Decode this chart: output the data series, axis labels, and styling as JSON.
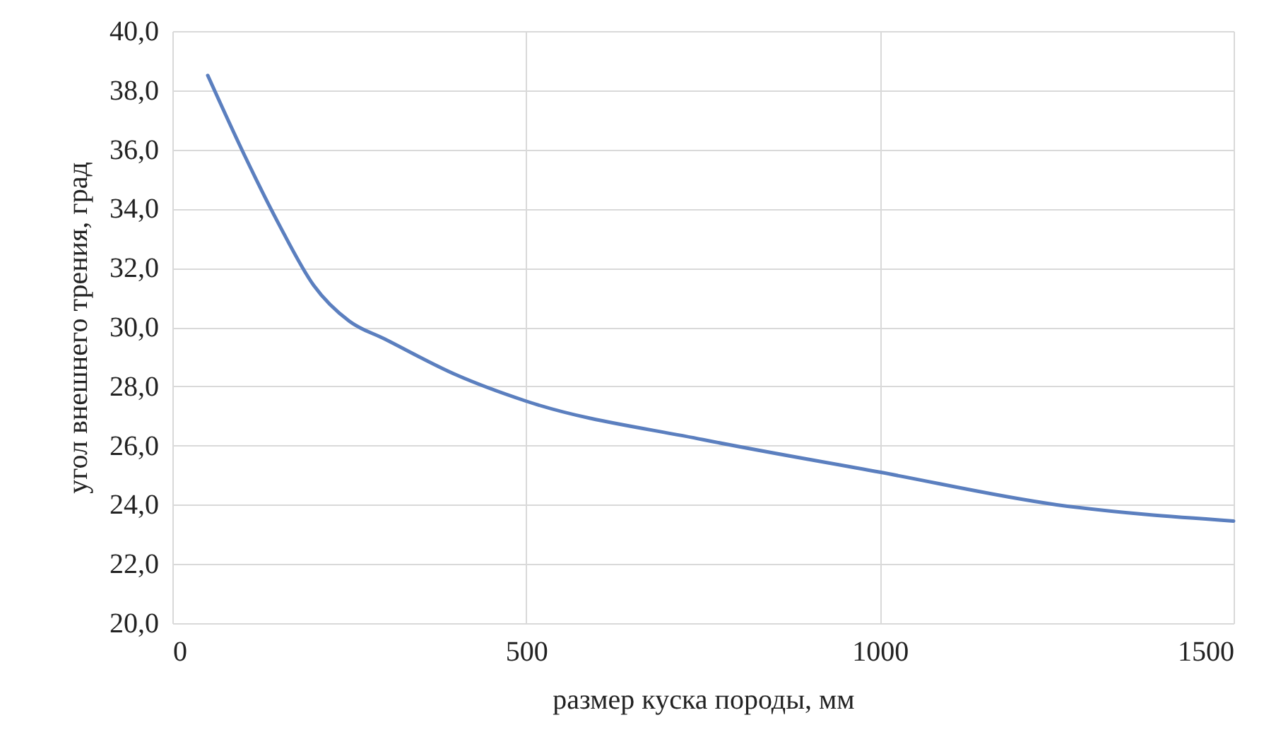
{
  "chart_data": {
    "type": "line",
    "xlabel": "размер куска породы, мм",
    "ylabel": "угол внешнего трения, град",
    "x": [
      50,
      100,
      150,
      200,
      250,
      300,
      400,
      500,
      750,
      1000,
      1250,
      1500
    ],
    "series": [
      {
        "color": "#5b7fbf",
        "values": [
          38.5,
          35.9,
          33.5,
          31.4,
          30.2,
          29.6,
          28.4,
          27.5,
          26.2,
          25.1,
          24.0,
          23.45
        ]
      }
    ],
    "xlim": [
      0,
      1500
    ],
    "xticks": [
      0,
      500,
      1000,
      1500
    ],
    "ylim": [
      20,
      40
    ],
    "yticks": [
      {
        "value": 20,
        "label": "20,0"
      },
      {
        "value": 22,
        "label": "22,0"
      },
      {
        "value": 24,
        "label": "24,0"
      },
      {
        "value": 26,
        "label": "26,0"
      },
      {
        "value": 28,
        "label": "28,0"
      },
      {
        "value": 30,
        "label": "30,0"
      },
      {
        "value": 32,
        "label": "32,0"
      },
      {
        "value": 34,
        "label": "34,0"
      },
      {
        "value": 36,
        "label": "36,0"
      },
      {
        "value": 38,
        "label": "38,0"
      },
      {
        "value": 40,
        "label": "40,0"
      }
    ],
    "grid": true,
    "marker": "none",
    "line_style": "solid"
  }
}
